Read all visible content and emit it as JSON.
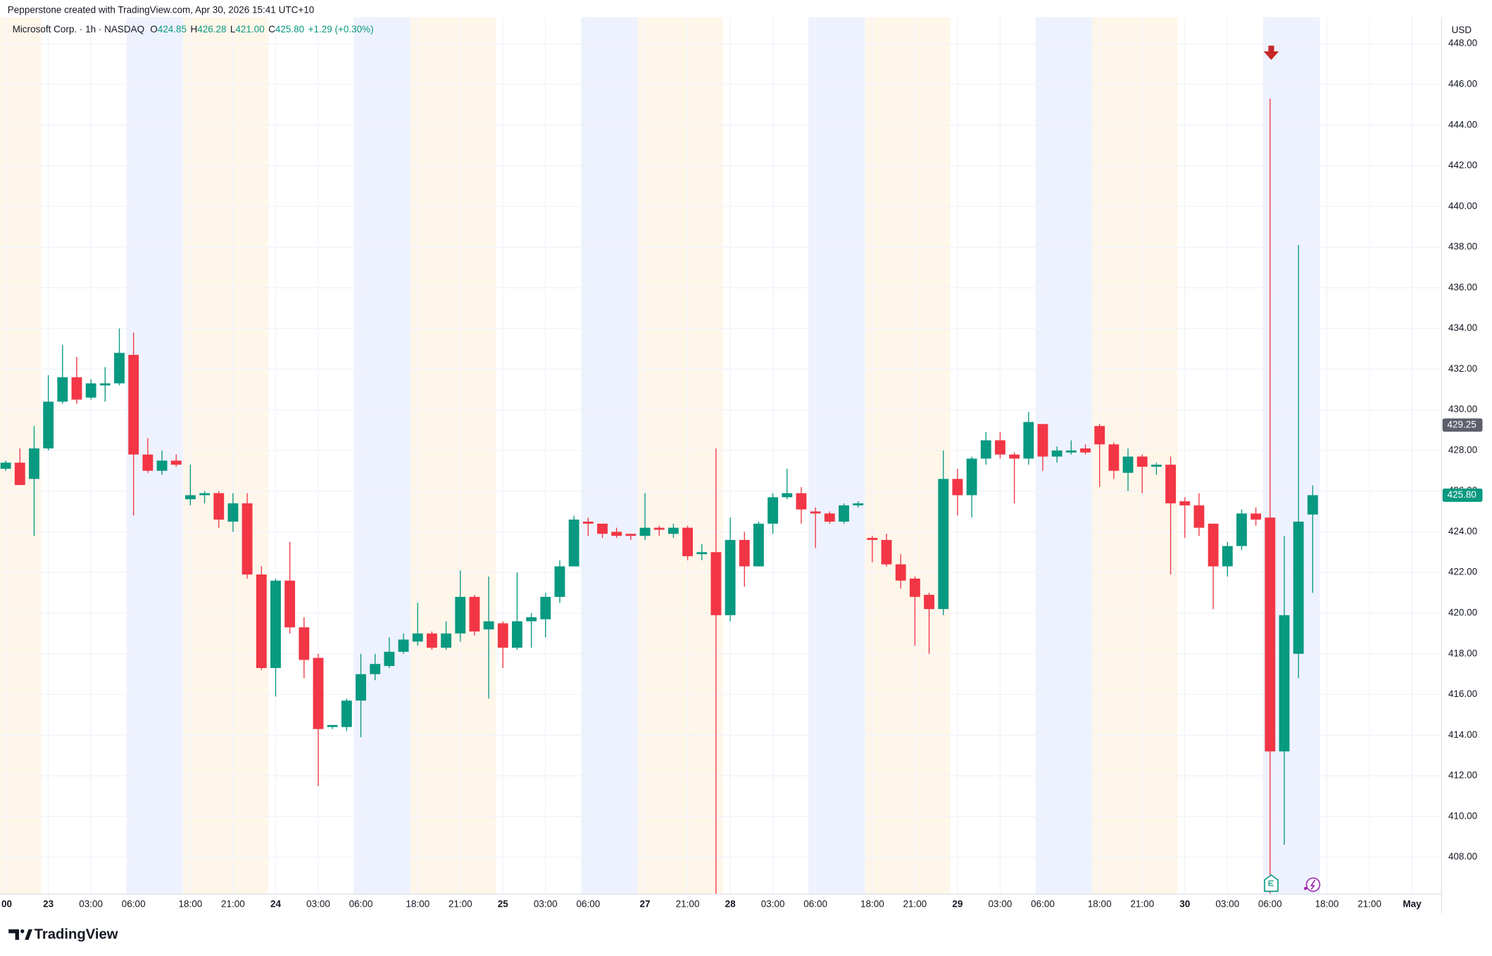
{
  "credit": "Pepperstone created with TradingView.com, Apr 30, 2026 15:41 UTC+10",
  "brand": "TradingView",
  "chart_data": {
    "type": "candlestick",
    "title": "Microsoft Corp. · 1h · NASDAQ",
    "legend": [
      {
        "key": "O",
        "value": "424.85"
      },
      {
        "key": "H",
        "value": "426.28"
      },
      {
        "key": "L",
        "value": "421.00"
      },
      {
        "key": "C",
        "value": "425.80"
      }
    ],
    "change": "+1.29 (+0.30%)",
    "currency": "USD",
    "up_color": "#089981",
    "down_color": "#f23645",
    "grid": true,
    "categories": [
      "00",
      null,
      null,
      "23",
      null,
      null,
      "03:00",
      null,
      null,
      "06:00",
      null,
      null,
      null,
      "18:00",
      null,
      null,
      "21:00",
      null,
      null,
      "24",
      null,
      null,
      "03:00",
      null,
      null,
      "06:00",
      null,
      null,
      null,
      "18:00",
      null,
      null,
      "21:00",
      null,
      null,
      "25",
      null,
      null,
      "03:00",
      null,
      null,
      "06:00",
      null,
      null,
      null,
      "27",
      null,
      null,
      "21:00",
      null,
      null,
      "28",
      null,
      null,
      "03:00",
      null,
      null,
      "06:00",
      null,
      null,
      null,
      "18:00",
      null,
      null,
      "21:00",
      null,
      null,
      "29",
      null,
      null,
      "03:00",
      null,
      null,
      "06:00",
      null,
      null,
      null,
      "18:00",
      null,
      null,
      "21:00",
      null,
      null,
      "30",
      null,
      null,
      "03:00",
      null,
      null,
      "06:00",
      null,
      null,
      null,
      "18:00",
      null,
      null,
      "21:00",
      null,
      null,
      "May"
    ],
    "open": [
      427.1,
      427.4,
      426.6,
      428.1,
      430.4,
      431.6,
      430.6,
      431.2,
      431.3,
      432.7,
      427.8,
      427.0,
      427.5,
      425.6,
      425.8,
      425.9,
      424.5,
      425.4,
      421.9,
      417.3,
      421.6,
      419.3,
      417.8,
      414.4,
      414.4,
      415.7,
      417.0,
      417.4,
      418.1,
      418.6,
      419.0,
      418.3,
      419.0,
      420.8,
      419.2,
      419.5,
      418.3,
      419.6,
      419.7,
      420.8,
      422.3,
      424.5,
      424.4,
      424.0,
      423.9,
      423.8,
      424.2,
      423.9,
      424.2,
      422.9,
      423.0,
      419.9,
      423.6,
      422.3,
      424.4,
      425.7,
      425.9,
      425.0,
      424.9,
      424.5,
      425.3,
      423.7,
      423.6,
      422.4,
      421.7,
      420.9,
      420.2,
      426.6,
      425.8,
      427.6,
      428.5,
      427.8,
      427.6,
      429.3,
      427.7,
      427.9,
      428.1,
      429.2,
      428.3,
      426.9,
      427.7,
      427.2,
      427.3,
      425.5,
      425.3,
      424.4,
      422.3,
      423.3,
      424.9,
      424.7,
      413.2,
      418.0,
      424.85,
      null,
      null,
      null,
      null,
      null,
      null,
      null
    ],
    "high": [
      427.5,
      428.1,
      429.2,
      431.7,
      433.2,
      432.6,
      431.5,
      432.1,
      434.0,
      433.8,
      428.6,
      428.0,
      427.8,
      427.3,
      426.0,
      426.0,
      425.9,
      425.9,
      422.3,
      421.7,
      423.5,
      419.8,
      418.0,
      414.5,
      415.8,
      418.0,
      418.0,
      418.8,
      419.0,
      420.5,
      419.1,
      419.6,
      422.1,
      420.9,
      421.8,
      419.6,
      422.0,
      420.0,
      421.0,
      422.6,
      424.8,
      424.7,
      424.4,
      424.2,
      423.9,
      425.9,
      424.3,
      424.4,
      424.3,
      423.4,
      428.1,
      424.7,
      424.0,
      424.5,
      425.9,
      427.1,
      426.2,
      425.2,
      425.0,
      425.4,
      425.5,
      423.8,
      423.9,
      422.9,
      421.8,
      421.0,
      428.0,
      427.1,
      427.7,
      428.9,
      428.9,
      427.9,
      429.9,
      429.3,
      428.2,
      428.5,
      428.3,
      429.3,
      428.4,
      428.1,
      427.8,
      427.4,
      427.7,
      425.7,
      425.9,
      424.4,
      423.5,
      425.1,
      425.2,
      445.3,
      423.8,
      438.1,
      426.28,
      null,
      null,
      null,
      null,
      null,
      null,
      null
    ],
    "low": [
      427.0,
      426.3,
      423.8,
      428.0,
      430.3,
      430.3,
      430.5,
      430.4,
      431.2,
      424.8,
      426.9,
      426.8,
      427.2,
      425.3,
      425.4,
      424.2,
      424.0,
      421.7,
      417.2,
      415.9,
      419.0,
      416.8,
      411.5,
      414.3,
      414.2,
      413.9,
      416.7,
      417.3,
      418.0,
      418.4,
      418.2,
      418.2,
      418.6,
      418.9,
      415.8,
      417.3,
      418.2,
      418.3,
      418.8,
      420.5,
      422.3,
      423.8,
      423.7,
      423.7,
      423.6,
      423.6,
      423.8,
      423.7,
      422.6,
      422.6,
      406.0,
      419.6,
      421.3,
      422.3,
      423.9,
      425.6,
      424.4,
      423.2,
      424.4,
      424.4,
      425.2,
      422.5,
      422.3,
      421.2,
      418.4,
      418.0,
      419.9,
      424.8,
      424.7,
      427.3,
      427.6,
      425.4,
      427.3,
      427.0,
      427.4,
      427.8,
      427.8,
      426.2,
      426.6,
      426.0,
      425.9,
      426.8,
      421.9,
      423.7,
      423.8,
      420.2,
      421.8,
      423.1,
      424.3,
      406.0,
      408.6,
      416.8,
      421.0,
      null,
      null,
      null,
      null,
      null,
      null,
      null
    ],
    "close": [
      427.4,
      426.3,
      428.1,
      430.4,
      431.6,
      430.5,
      431.3,
      431.3,
      432.8,
      427.8,
      427.0,
      427.5,
      427.3,
      425.8,
      425.9,
      424.6,
      425.4,
      421.9,
      417.3,
      421.6,
      419.3,
      417.7,
      414.3,
      414.5,
      415.7,
      417.0,
      417.5,
      418.1,
      418.7,
      419.0,
      418.3,
      419.0,
      420.8,
      419.1,
      419.6,
      418.3,
      419.6,
      419.8,
      420.8,
      422.3,
      424.6,
      424.4,
      423.9,
      423.8,
      423.8,
      424.2,
      424.1,
      424.2,
      422.8,
      423.0,
      419.9,
      423.6,
      422.3,
      424.4,
      425.7,
      425.9,
      425.1,
      424.9,
      424.5,
      425.3,
      425.4,
      423.6,
      422.4,
      421.6,
      420.8,
      420.2,
      426.6,
      425.8,
      427.6,
      428.5,
      427.8,
      427.6,
      429.4,
      427.7,
      428.0,
      428.0,
      427.9,
      428.3,
      427.0,
      427.7,
      427.2,
      427.3,
      425.4,
      425.3,
      424.2,
      422.3,
      423.3,
      424.9,
      424.6,
      413.2,
      419.9,
      424.5,
      425.8,
      null,
      null,
      null,
      null,
      null,
      null,
      null
    ],
    "ylim": [
      406.18,
      449.31
    ],
    "yticks": [
      {
        "value": 408,
        "label": "408.00"
      },
      {
        "value": 410,
        "label": "410.00"
      },
      {
        "value": 412,
        "label": "412.00"
      },
      {
        "value": 414,
        "label": "414.00"
      },
      {
        "value": 416,
        "label": "416.00"
      },
      {
        "value": 418,
        "label": "418.00"
      },
      {
        "value": 420,
        "label": "420.00"
      },
      {
        "value": 422,
        "label": "422.00"
      },
      {
        "value": 424,
        "label": "424.00"
      },
      {
        "value": 426,
        "label": "426.00"
      },
      {
        "value": 428,
        "label": "428.00"
      },
      {
        "value": 430,
        "label": "430.00"
      },
      {
        "value": 432,
        "label": "432.00"
      },
      {
        "value": 434,
        "label": "434.00"
      },
      {
        "value": 436,
        "label": "436.00"
      },
      {
        "value": 438,
        "label": "438.00"
      },
      {
        "value": 440,
        "label": "440.00"
      },
      {
        "value": 442,
        "label": "442.00"
      },
      {
        "value": 444,
        "label": "444.00"
      },
      {
        "value": 446,
        "label": "446.00"
      },
      {
        "value": 448,
        "label": "448.00"
      }
    ],
    "price_labels": [
      {
        "value": 429.25,
        "label": "429.25",
        "color": "#5d606b"
      },
      {
        "value": 425.8,
        "label": "425.80",
        "color": "#089981"
      }
    ]
  }
}
